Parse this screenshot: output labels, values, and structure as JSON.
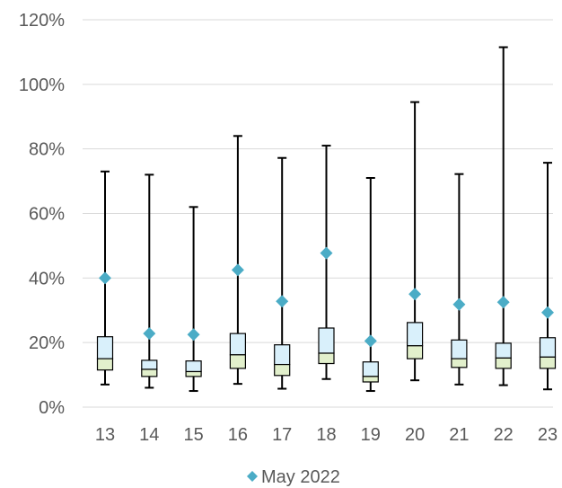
{
  "chart_data": {
    "type": "boxplot",
    "title": "",
    "xlabel": "",
    "ylabel": "",
    "ylim": [
      0,
      1.2
    ],
    "y_ticks": [
      0,
      0.2,
      0.4,
      0.6,
      0.8,
      1.0,
      1.2
    ],
    "y_tick_labels": [
      "0%",
      "20%",
      "40%",
      "60%",
      "80%",
      "100%",
      "120%"
    ],
    "grid": "horizontal",
    "legend_position": "bottom",
    "categories": [
      "13",
      "14",
      "15",
      "16",
      "17",
      "18",
      "19",
      "20",
      "21",
      "22",
      "23"
    ],
    "boxes": [
      {
        "min": 0.07,
        "q1": 0.115,
        "median": 0.15,
        "q3": 0.218,
        "max": 0.73
      },
      {
        "min": 0.06,
        "q1": 0.095,
        "median": 0.117,
        "q3": 0.145,
        "max": 0.72
      },
      {
        "min": 0.05,
        "q1": 0.095,
        "median": 0.11,
        "q3": 0.143,
        "max": 0.62
      },
      {
        "min": 0.072,
        "q1": 0.12,
        "median": 0.162,
        "q3": 0.228,
        "max": 0.84
      },
      {
        "min": 0.057,
        "q1": 0.098,
        "median": 0.132,
        "q3": 0.193,
        "max": 0.772
      },
      {
        "min": 0.087,
        "q1": 0.135,
        "median": 0.167,
        "q3": 0.245,
        "max": 0.81
      },
      {
        "min": 0.05,
        "q1": 0.078,
        "median": 0.095,
        "q3": 0.14,
        "max": 0.71
      },
      {
        "min": 0.083,
        "q1": 0.15,
        "median": 0.19,
        "q3": 0.262,
        "max": 0.945
      },
      {
        "min": 0.07,
        "q1": 0.123,
        "median": 0.15,
        "q3": 0.208,
        "max": 0.722
      },
      {
        "min": 0.068,
        "q1": 0.12,
        "median": 0.152,
        "q3": 0.198,
        "max": 1.115
      },
      {
        "min": 0.055,
        "q1": 0.12,
        "median": 0.155,
        "q3": 0.215,
        "max": 0.757
      }
    ],
    "series": [
      {
        "name": "May 2022",
        "values": [
          0.4,
          0.228,
          0.225,
          0.425,
          0.328,
          0.477,
          0.205,
          0.35,
          0.318,
          0.325,
          0.293
        ]
      }
    ],
    "colors": {
      "upper_box": "#d9f0fb",
      "lower_box": "#e2f0cc",
      "box_stroke": "#000000",
      "marker": "#4bacc6",
      "grid": "#d9d9d9",
      "text": "#595959"
    }
  }
}
